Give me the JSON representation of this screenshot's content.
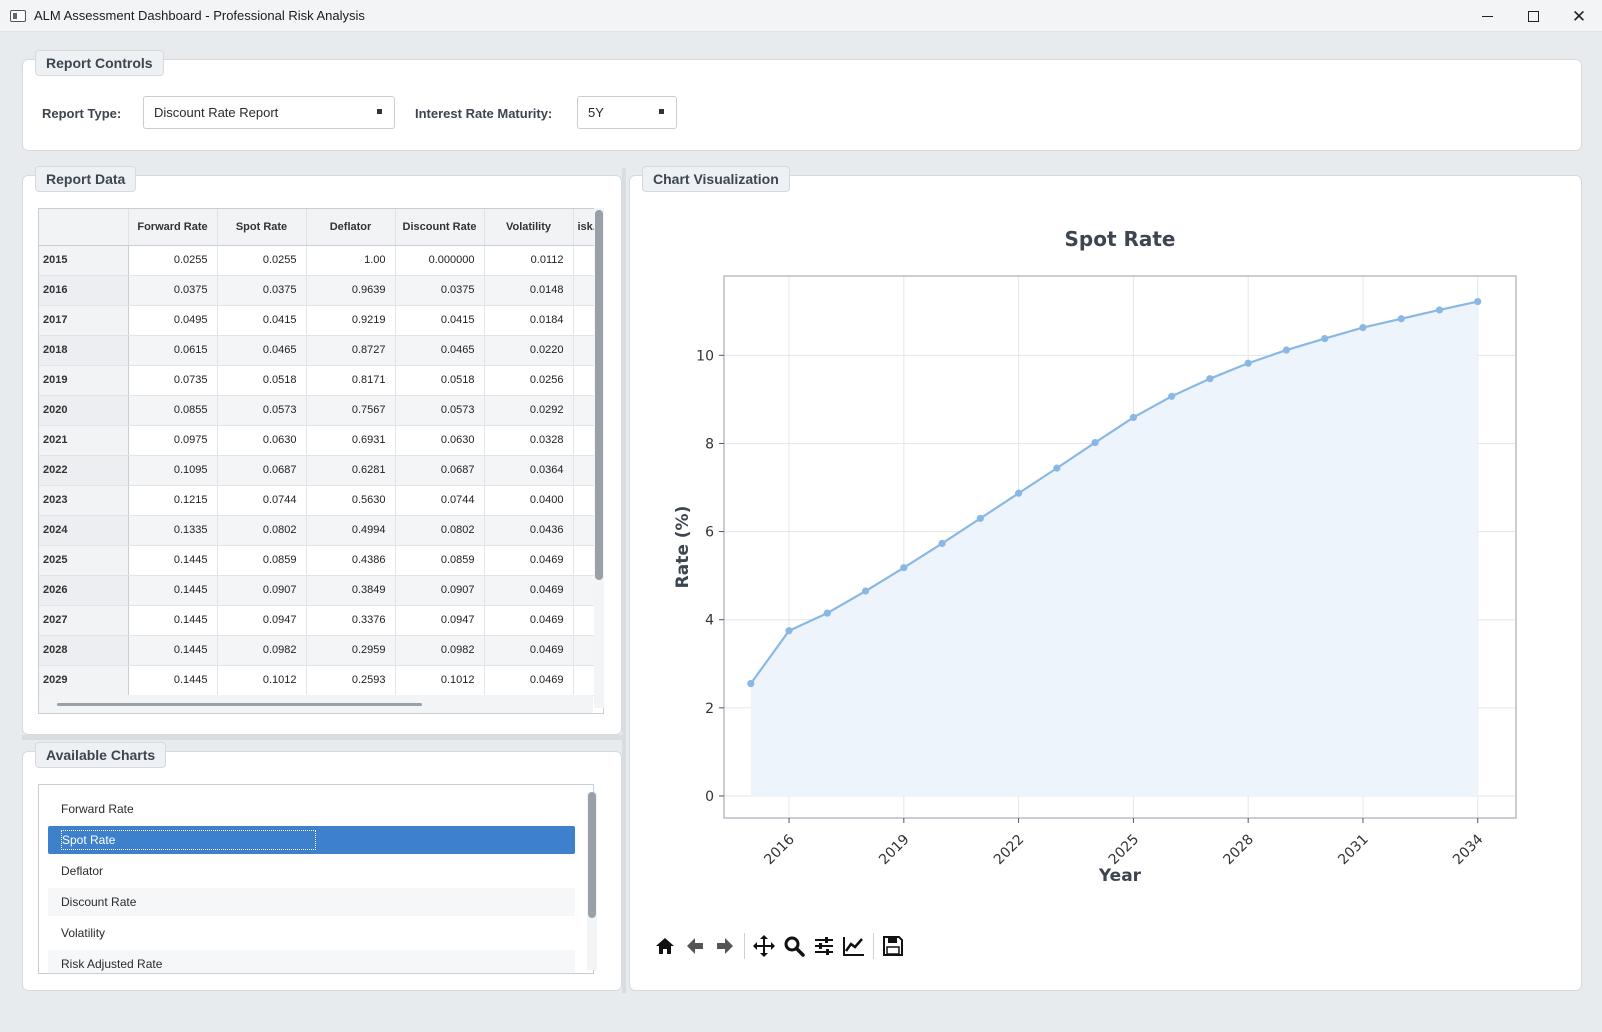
{
  "window": {
    "title": "ALM Assessment Dashboard - Professional Risk Analysis",
    "icons": [
      "app-icon",
      "minimize-icon",
      "maximize-icon",
      "close-icon"
    ]
  },
  "report_controls": {
    "title": "Report Controls",
    "report_type_label": "Report Type:",
    "report_type_value": "Discount Rate Report",
    "maturity_label": "Interest Rate Maturity:",
    "maturity_value": "5Y"
  },
  "report_data": {
    "title": "Report Data",
    "columns": [
      "",
      "Forward Rate",
      "Spot Rate",
      "Deflator",
      "Discount Rate",
      "Volatility",
      "isk..."
    ],
    "rows": [
      [
        "2015",
        "0.0255",
        "0.0255",
        "1.00",
        "0.000000",
        "0.0112",
        ""
      ],
      [
        "2016",
        "0.0375",
        "0.0375",
        "0.9639",
        "0.0375",
        "0.0148",
        ""
      ],
      [
        "2017",
        "0.0495",
        "0.0415",
        "0.9219",
        "0.0415",
        "0.0184",
        ""
      ],
      [
        "2018",
        "0.0615",
        "0.0465",
        "0.8727",
        "0.0465",
        "0.0220",
        ""
      ],
      [
        "2019",
        "0.0735",
        "0.0518",
        "0.8171",
        "0.0518",
        "0.0256",
        ""
      ],
      [
        "2020",
        "0.0855",
        "0.0573",
        "0.7567",
        "0.0573",
        "0.0292",
        ""
      ],
      [
        "2021",
        "0.0975",
        "0.0630",
        "0.6931",
        "0.0630",
        "0.0328",
        ""
      ],
      [
        "2022",
        "0.1095",
        "0.0687",
        "0.6281",
        "0.0687",
        "0.0364",
        ""
      ],
      [
        "2023",
        "0.1215",
        "0.0744",
        "0.5630",
        "0.0744",
        "0.0400",
        ""
      ],
      [
        "2024",
        "0.1335",
        "0.0802",
        "0.4994",
        "0.0802",
        "0.0436",
        ""
      ],
      [
        "2025",
        "0.1445",
        "0.0859",
        "0.4386",
        "0.0859",
        "0.0469",
        ""
      ],
      [
        "2026",
        "0.1445",
        "0.0907",
        "0.3849",
        "0.0907",
        "0.0469",
        ""
      ],
      [
        "2027",
        "0.1445",
        "0.0947",
        "0.3376",
        "0.0947",
        "0.0469",
        ""
      ],
      [
        "2028",
        "0.1445",
        "0.0982",
        "0.2959",
        "0.0982",
        "0.0469",
        ""
      ],
      [
        "2029",
        "0.1445",
        "0.1012",
        "0.2593",
        "0.1012",
        "0.0469",
        ""
      ]
    ]
  },
  "available_charts": {
    "title": "Available Charts",
    "items": [
      "Forward Rate",
      "Spot Rate",
      "Deflator",
      "Discount Rate",
      "Volatility",
      "Risk Adjusted Rate"
    ],
    "selected": "Spot Rate"
  },
  "chart_panel": {
    "title": "Chart Visualization",
    "toolbar_icons": [
      "home-icon",
      "back-arrow-icon",
      "forward-arrow-icon",
      "pan-icon",
      "zoom-icon",
      "configure-subplots-icon",
      "edit-axis-icon",
      "save-icon"
    ]
  },
  "chart_data": {
    "type": "line",
    "title": "Spot Rate",
    "xlabel": "Year",
    "ylabel": "Rate (%)",
    "x": [
      2015,
      2016,
      2017,
      2018,
      2019,
      2020,
      2021,
      2022,
      2023,
      2024,
      2025,
      2026,
      2027,
      2028,
      2029,
      2030,
      2031,
      2032,
      2033,
      2034
    ],
    "y": [
      2.55,
      3.75,
      4.15,
      4.65,
      5.18,
      5.73,
      6.3,
      6.87,
      7.44,
      8.02,
      8.59,
      9.07,
      9.47,
      9.82,
      10.12,
      10.38,
      10.63,
      10.83,
      11.03,
      11.22
    ],
    "xticks": [
      2016,
      2019,
      2022,
      2025,
      2028,
      2031,
      2034
    ],
    "yticks": [
      0,
      2,
      4,
      6,
      8,
      10
    ],
    "xlim": [
      2014.3,
      2035.0
    ],
    "ylim": [
      -0.5,
      11.8
    ],
    "grid": true,
    "fill_below": true,
    "color": "#8ab8e4",
    "fill_color": "#eef4fb"
  }
}
